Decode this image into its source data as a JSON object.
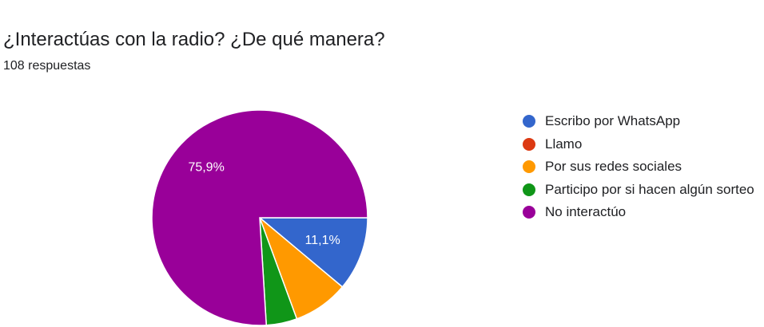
{
  "header": {
    "title": "¿Interactúas con la radio? ¿De qué manera?",
    "subtitle": "108 respuestas"
  },
  "chart_data": {
    "type": "pie",
    "title": "¿Interactúas con la radio? ¿De qué manera?",
    "categories": [
      "Escribo por WhatsApp",
      "Llamo",
      "Por sus redes sociales",
      "Participo por si hacen algún sorteo",
      "No interactúo"
    ],
    "values": [
      11.1,
      0,
      8.3,
      4.6,
      75.9
    ],
    "colors": [
      "#3366cc",
      "#dc3912",
      "#ff9900",
      "#109618",
      "#990099"
    ],
    "data_labels": [
      "11,1%",
      "",
      "",
      "",
      "75,9%"
    ],
    "legend_position": "right"
  }
}
